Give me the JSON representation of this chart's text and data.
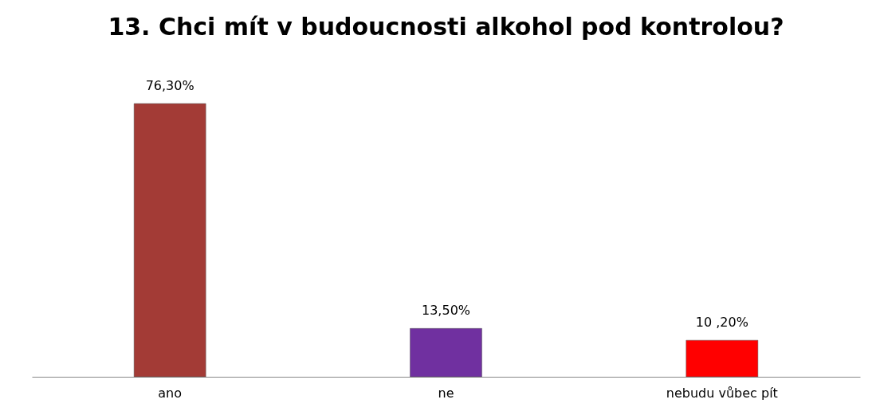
{
  "chart_data": {
    "type": "bar",
    "title": "13. Chci mít v budoucnosti alkohol pod kontrolou?",
    "categories": [
      "ano",
      "ne",
      "nebudu vůbec pít"
    ],
    "values": [
      76.3,
      13.5,
      10.2
    ],
    "colors": [
      "#a33b36",
      "#7030a0",
      "#ff0000"
    ],
    "value_labels": [
      "76,30%",
      "13,50%",
      "10 ,20%"
    ]
  }
}
